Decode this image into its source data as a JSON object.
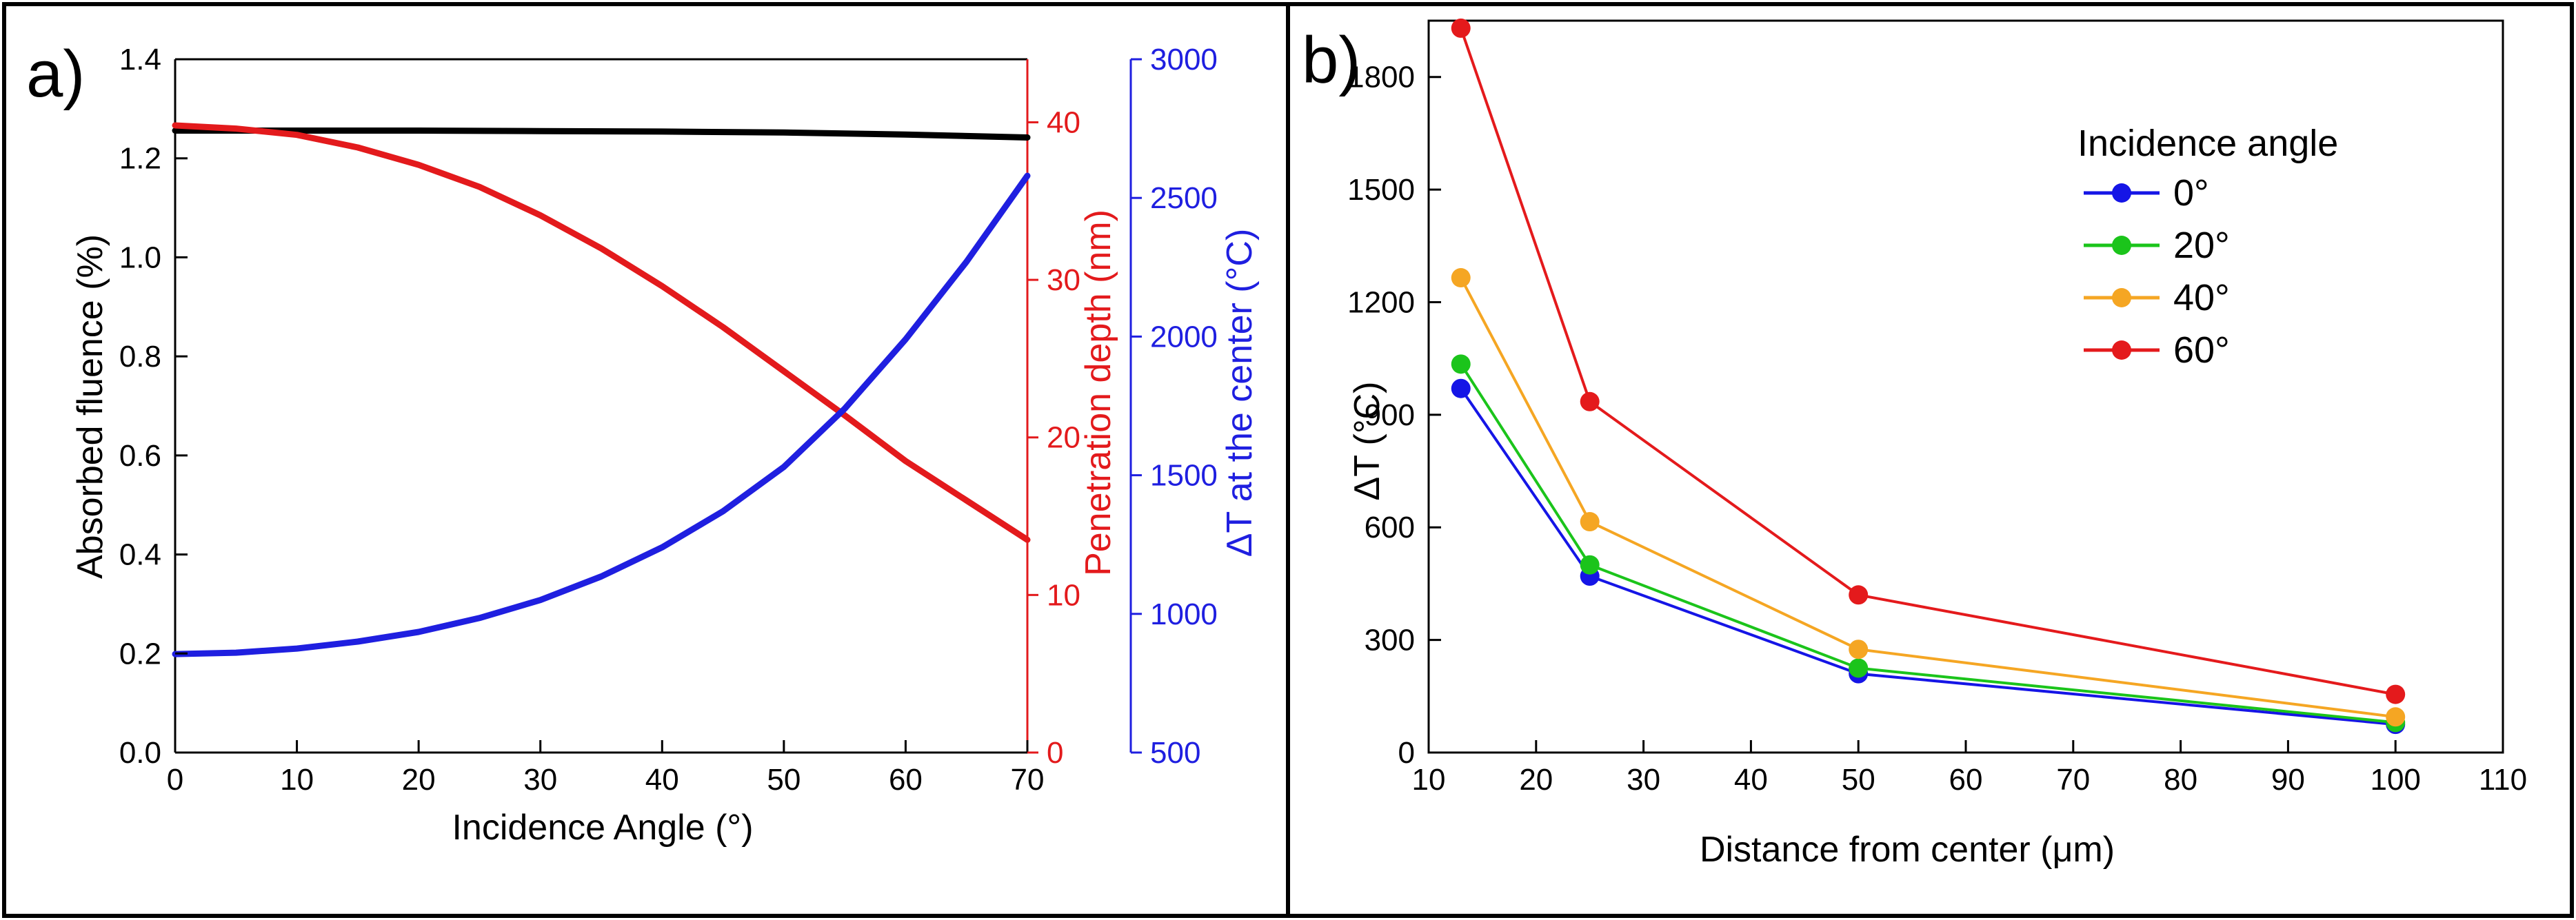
{
  "figure": {
    "panel_a_tag": "a)",
    "panel_b_tag": "b)"
  },
  "colors": {
    "black": "#000000",
    "red": "#e31a1c",
    "blue": "#1f1fe0",
    "series_0": "#1515e6",
    "series_20": "#1bc41b",
    "series_40": "#f5a623",
    "series_60": "#e41a1c"
  },
  "chart_data": [
    {
      "type": "line",
      "panel": "a",
      "title": "",
      "xlabel": "Incidence Angle (°)",
      "xlim": [
        0,
        70
      ],
      "x_ticks": [
        "0",
        "10",
        "20",
        "30",
        "40",
        "50",
        "60",
        "70"
      ],
      "axes": {
        "left": {
          "label": "Absorbed fluence (%)",
          "lim": [
            0.0,
            1.4
          ],
          "ticks": [
            "0.0",
            "0.2",
            "0.4",
            "0.6",
            "0.8",
            "1.0",
            "1.2",
            "1.4"
          ]
        },
        "right1": {
          "label": "Penetration depth (nm)",
          "lim": [
            0,
            44
          ],
          "ticks": [
            "0",
            "10",
            "20",
            "30",
            "40"
          ]
        },
        "right2": {
          "label": "ΔT at the center (°C)",
          "lim": [
            500,
            3000
          ],
          "ticks": [
            "500",
            "1000",
            "1500",
            "2000",
            "2500",
            "3000"
          ]
        }
      },
      "series": [
        {
          "name": "Absorbed fluence",
          "axis": "left",
          "x": [
            0,
            10,
            20,
            30,
            40,
            50,
            60,
            70
          ],
          "values": [
            1.256,
            1.256,
            1.256,
            1.255,
            1.254,
            1.252,
            1.248,
            1.242
          ]
        },
        {
          "name": "Penetration depth",
          "axis": "right1",
          "x": [
            0,
            5,
            10,
            15,
            20,
            25,
            30,
            35,
            40,
            45,
            50,
            55,
            60,
            65,
            70
          ],
          "values": [
            39.8,
            39.6,
            39.2,
            38.4,
            37.3,
            35.9,
            34.1,
            32.0,
            29.6,
            27.0,
            24.2,
            21.4,
            18.5,
            16.0,
            13.5
          ]
        },
        {
          "name": "ΔT at the center",
          "axis": "right2",
          "x": [
            0,
            5,
            10,
            15,
            20,
            25,
            30,
            35,
            40,
            45,
            50,
            55,
            60,
            65,
            70
          ],
          "values": [
            855,
            860,
            875,
            900,
            935,
            985,
            1050,
            1135,
            1240,
            1370,
            1530,
            1740,
            1990,
            2270,
            2580
          ]
        }
      ]
    },
    {
      "type": "line",
      "panel": "b",
      "title": "",
      "xlabel": "Distance from center (μm)",
      "ylabel": "ΔT (°C)",
      "xlim": [
        10,
        110
      ],
      "ylim": [
        0,
        1950
      ],
      "x_ticks": [
        "10",
        "20",
        "30",
        "40",
        "50",
        "60",
        "70",
        "80",
        "90",
        "100",
        "110"
      ],
      "y_ticks": [
        "0",
        "300",
        "600",
        "900",
        "1200",
        "1500",
        "1800"
      ],
      "legend": {
        "title": "Incidence angle",
        "placement": "top-right"
      },
      "x": [
        13,
        25,
        50,
        100
      ],
      "series": [
        {
          "name": "0°",
          "values": [
            970,
            470,
            210,
            75
          ]
        },
        {
          "name": "20°",
          "values": [
            1035,
            500,
            225,
            80
          ]
        },
        {
          "name": "40°",
          "values": [
            1265,
            615,
            275,
            95
          ]
        },
        {
          "name": "60°",
          "values": [
            1930,
            935,
            420,
            155
          ]
        }
      ]
    }
  ]
}
